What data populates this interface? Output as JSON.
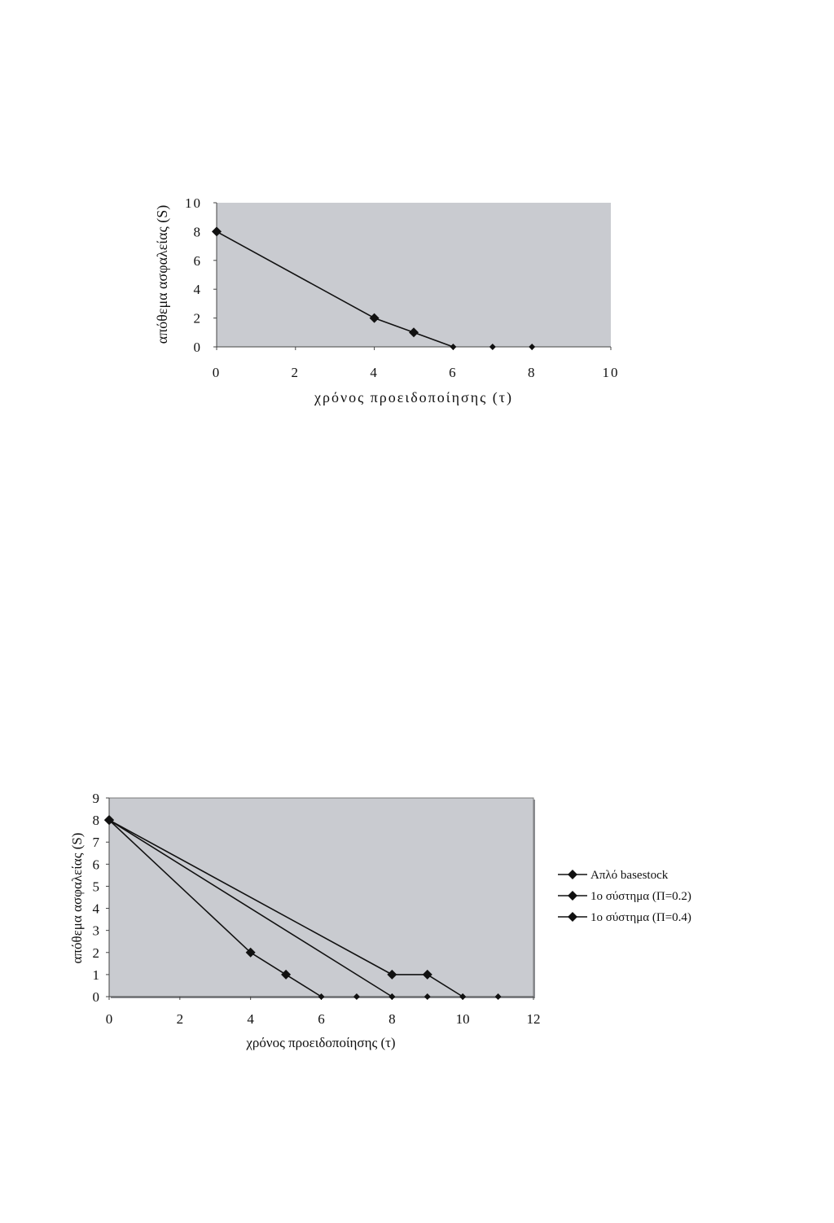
{
  "chart_data": [
    {
      "type": "line",
      "title": "",
      "xlabel": "χρόνος προειδοποίησης (τ)",
      "ylabel": "απόθεμα ασφαλείας (S)",
      "xlim": [
        0,
        10
      ],
      "ylim": [
        0,
        10
      ],
      "x_ticks": [
        "0",
        "2",
        "4",
        "6",
        "8",
        "10"
      ],
      "y_ticks": [
        "0",
        "2",
        "4",
        "6",
        "8",
        "10"
      ],
      "grid": false,
      "plot_background": "#c9cbd0",
      "series": [
        {
          "x": [
            0,
            4,
            5,
            6,
            7,
            8
          ],
          "y": [
            8,
            2,
            1,
            0,
            0,
            0
          ]
        }
      ]
    },
    {
      "type": "line",
      "title": "",
      "xlabel": "χρόνος προειδοποίησης (τ)",
      "ylabel": "απόθεμα ασφαλείας (S)",
      "xlim": [
        0,
        12
      ],
      "ylim": [
        0,
        9
      ],
      "x_ticks": [
        "0",
        "2",
        "4",
        "6",
        "8",
        "10",
        "12"
      ],
      "y_ticks": [
        "0",
        "1",
        "2",
        "3",
        "4",
        "5",
        "6",
        "7",
        "8",
        "9"
      ],
      "grid": false,
      "legend_position": "right",
      "plot_background": "#c9cbd0",
      "series": [
        {
          "name": "Απλό basestock",
          "x": [
            0,
            4,
            5,
            6,
            7,
            8
          ],
          "y": [
            8,
            2,
            1,
            0,
            0,
            0
          ]
        },
        {
          "name": "1ο σύστημα (Π=0.2)",
          "x": [
            0,
            8,
            9,
            10,
            11
          ],
          "y": [
            8,
            0,
            0,
            0,
            0
          ]
        },
        {
          "name": "1ο σύστημα (Π=0.4)",
          "x": [
            0,
            8,
            9,
            10
          ],
          "y": [
            8,
            1,
            1,
            0
          ]
        }
      ]
    }
  ]
}
